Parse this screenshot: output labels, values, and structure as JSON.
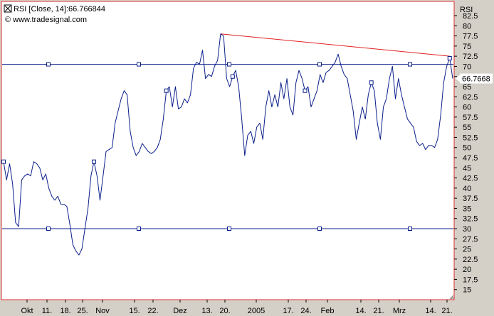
{
  "header": {
    "indicator_label": "RSI [Close, 14]:66.766844",
    "source_label": "© www.tradesignal.com",
    "panel_name": "RSI"
  },
  "chart_data": {
    "type": "line",
    "title": "RSI [Close, 14]",
    "ylabel": "RSI",
    "ylim": [
      12.5,
      86
    ],
    "y_ticks": [
      15,
      17.5,
      20,
      22.5,
      25,
      27.5,
      30,
      32.5,
      35,
      37.5,
      40,
      42.5,
      45,
      47.5,
      50,
      52.5,
      55,
      57.5,
      60,
      62.5,
      65,
      67.5,
      70,
      72.5,
      75,
      77.5,
      80,
      82.5
    ],
    "x_labels": [
      "Okt",
      "11.",
      "18.",
      "25.",
      "Nov",
      "15.",
      "22.",
      "Dez",
      "13.",
      "20.",
      "2005",
      "17.",
      "24.",
      "Feb",
      "14.",
      "21.",
      "Mrz",
      "14.",
      "21."
    ],
    "last_value_label": "66.7668",
    "series": [
      {
        "color": "#0b1f8a",
        "values": [
          46.5,
          42,
          46,
          41,
          31.5,
          30.5,
          42,
          43,
          43.5,
          43,
          46.5,
          46,
          45,
          42,
          43.5,
          40,
          38,
          37,
          38,
          36,
          36,
          35.5,
          31,
          26,
          24.5,
          23.5,
          25,
          30,
          35,
          43,
          46.5,
          43,
          37,
          43,
          49,
          49.5,
          50,
          56,
          59,
          62,
          64,
          63,
          54,
          50,
          48,
          49,
          51,
          50,
          49,
          48.5,
          49,
          50,
          52,
          57,
          64,
          65,
          60,
          65,
          59.5,
          60,
          62,
          61,
          63,
          69.5,
          71,
          70.5,
          74,
          67,
          68,
          67.5,
          70,
          71.5,
          78,
          77.5,
          67,
          65,
          67.5,
          69,
          65,
          57,
          48,
          53,
          54,
          51,
          55,
          56,
          52,
          60,
          64,
          60,
          63,
          60,
          66,
          62,
          67,
          60,
          58,
          66,
          69,
          67,
          64,
          65,
          60,
          62,
          64,
          68,
          66,
          68.5,
          69,
          70,
          71,
          73,
          70,
          68,
          67,
          63,
          59,
          52,
          56,
          60,
          57,
          63,
          66,
          64,
          56,
          52,
          60,
          62,
          67,
          70,
          62,
          67,
          63,
          60,
          57,
          56,
          55,
          51.5,
          50.5,
          51,
          49.5,
          50.5,
          50.5,
          50,
          52,
          58,
          66,
          70,
          72,
          67
        ]
      }
    ],
    "horizontal_lines": [
      {
        "y": 70.5,
        "color": "#0b1f8a"
      },
      {
        "y": 30,
        "color": "#0b1f8a"
      }
    ],
    "trendline": {
      "color": "#e02020",
      "from": {
        "index": 72,
        "value": 78
      },
      "to": {
        "index": 148,
        "value": 72.5
      }
    },
    "marker_indices": [
      0,
      30,
      54,
      76,
      100,
      122,
      148
    ],
    "grid": false,
    "legend": "none"
  }
}
